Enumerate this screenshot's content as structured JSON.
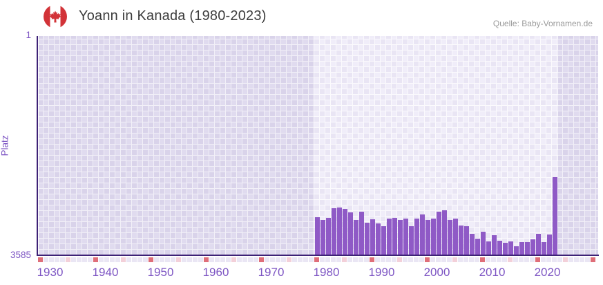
{
  "header": {
    "title": "Yoann in Kanada (1980-2023)",
    "source": "Quelle: Baby-Vornamen.de",
    "flag_icon": "canada-flag-icon"
  },
  "chart_data": {
    "type": "bar",
    "title": "Yoann in Kanada (1980-2023)",
    "xlabel": "",
    "ylabel": "Platz",
    "y_axis": {
      "top_label": "1",
      "bottom_label": "3585",
      "min": 1,
      "max": 3585,
      "inverted": true,
      "note": "rank 1 at top, bars grow upward from rank 3585 baseline"
    },
    "x_axis": {
      "marker_start": 1930,
      "marker_end": 2030,
      "tick_years": [
        1930,
        1940,
        1950,
        1960,
        1970,
        1980,
        1990,
        2000,
        2010,
        2020
      ]
    },
    "highlight_band": {
      "from": 1980,
      "to": 2023
    },
    "years": [
      1980,
      1981,
      1982,
      1983,
      1984,
      1985,
      1986,
      1987,
      1988,
      1989,
      1990,
      1991,
      1992,
      1993,
      1994,
      1995,
      1996,
      1997,
      1998,
      1999,
      2000,
      2001,
      2002,
      2003,
      2004,
      2005,
      2006,
      2007,
      2008,
      2009,
      2010,
      2011,
      2012,
      2013,
      2014,
      2015,
      2016,
      2017,
      2018,
      2019,
      2020,
      2021,
      2022,
      2023
    ],
    "ranks": [
      2970,
      3015,
      2980,
      2825,
      2810,
      2835,
      2890,
      3015,
      2880,
      3060,
      3005,
      3070,
      3125,
      3000,
      2980,
      3015,
      2990,
      3115,
      2990,
      2925,
      3015,
      2990,
      2880,
      2855,
      3015,
      2990,
      3105,
      3115,
      3250,
      3325,
      3215,
      3370,
      3270,
      3360,
      3395,
      3370,
      3450,
      3385,
      3385,
      3340,
      3250,
      3385,
      3260,
      2310
    ],
    "legend": null,
    "grid": "on",
    "colors": {
      "bar": "#8f5ac6",
      "axis_line": "#3e2277",
      "axis_text": "#7d55c3",
      "marker_decade": "#df6e79",
      "marker_half_decade": "#f3d0d9",
      "marker_default": "#eae6f4",
      "flag_red": "#d23338",
      "title_text": "#3d3d3d",
      "source_text": "#9a9a9a"
    }
  }
}
